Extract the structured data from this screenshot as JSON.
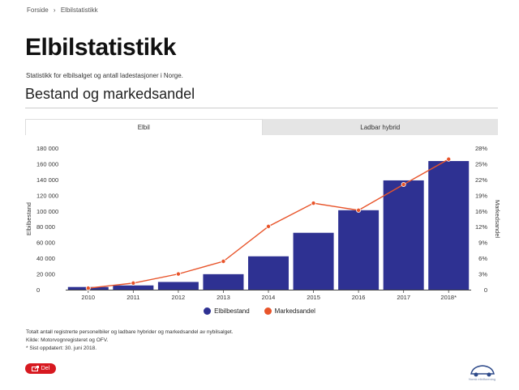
{
  "breadcrumb": {
    "home": "Forside",
    "separator": "›",
    "current": "Elbilstatistikk"
  },
  "page": {
    "title": "Elbilstatistikk",
    "intro": "Statistikk for elbilsalget og antall ladestasjoner i Norge.",
    "section_title": "Bestand og markedsandel"
  },
  "tabs": [
    {
      "label": "Elbil",
      "active": true
    },
    {
      "label": "Ladbar hybrid",
      "active": false
    }
  ],
  "chart_data": {
    "type": "bar",
    "categories": [
      "2010",
      "2011",
      "2012",
      "2013",
      "2014",
      "2015",
      "2016",
      "2017",
      "2018*"
    ],
    "series": [
      {
        "name": "Elbilbestand",
        "type": "bar",
        "axis": "left",
        "color": "#2e3192",
        "values": [
          3400,
          5400,
          9800,
          19700,
          42400,
          72300,
          101000,
          138900,
          163500
        ]
      },
      {
        "name": "Markedsandel",
        "type": "line",
        "axis": "right",
        "color": "#e8542a",
        "values": [
          0.3,
          1.3,
          3.1,
          5.6,
          12.5,
          17.1,
          15.7,
          20.8,
          25.8
        ]
      }
    ],
    "ylabel": "Elbilbestand",
    "y2label": "Markedsandel",
    "ylim": [
      0,
      180000
    ],
    "y2lim": [
      0,
      28
    ],
    "yticks": [
      "0",
      "20 000",
      "40 000",
      "60 000",
      "80 000",
      "100 000",
      "120 000",
      "140 000",
      "160 000",
      "180 000"
    ],
    "y2ticks": [
      "0",
      "3%",
      "6%",
      "9%",
      "12%",
      "16%",
      "19%",
      "22%",
      "25%",
      "28%"
    ],
    "legend_position": "bottom-center",
    "grid": false
  },
  "footnotes": [
    "Totalt antall registrerte personelbiler og ladbare hybrider og markedsandel av nybilsalget.",
    "Kilde: Motorvognregisteret og OFV.",
    "* Sist oppdatert: 30. juni 2018."
  ],
  "share": {
    "label": "Del",
    "icon": "share-icon"
  },
  "logo": {
    "text": "Norsk elbilforening",
    "icon": "car-logo-icon"
  }
}
